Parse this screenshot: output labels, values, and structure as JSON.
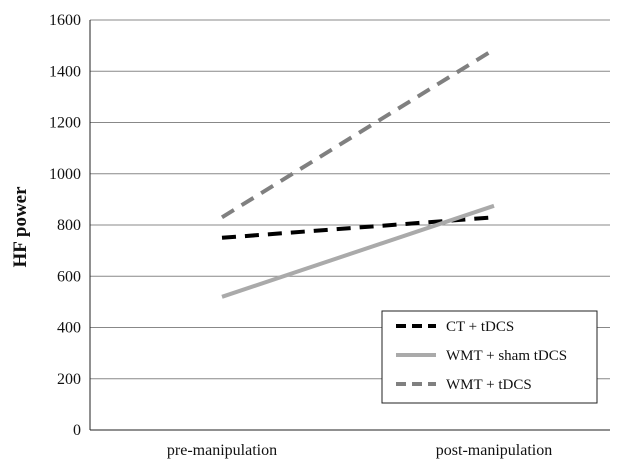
{
  "chart_data": {
    "type": "line",
    "title": "",
    "xlabel": "",
    "ylabel": "HF power",
    "categories": [
      "pre-manipulation",
      "post-manipulation"
    ],
    "ylim": [
      0,
      1600
    ],
    "yticks": [
      0,
      200,
      400,
      600,
      800,
      1000,
      1200,
      1400,
      1600
    ],
    "grid": true,
    "legend_position": "bottom-right",
    "series": [
      {
        "name": "CT + tDCS",
        "values": [
          750,
          830
        ],
        "color": "#000000",
        "dash": "dashed"
      },
      {
        "name": "WMT + sham tDCS",
        "values": [
          520,
          875
        ],
        "color": "#aaaaaa",
        "dash": "solid"
      },
      {
        "name": "WMT + tDCS",
        "values": [
          830,
          1485
        ],
        "color": "#808080",
        "dash": "dashed"
      }
    ]
  }
}
